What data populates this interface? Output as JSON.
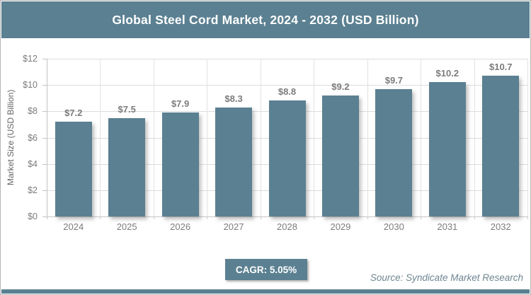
{
  "header": {
    "title": "Global Steel Cord Market, 2024 - 2032 (USD Billion)"
  },
  "chart_data": {
    "type": "bar",
    "title": "Global Steel Cord Market, 2024 - 2032 (USD Billion)",
    "categories": [
      "2024",
      "2025",
      "2026",
      "2027",
      "2028",
      "2029",
      "2030",
      "2031",
      "2032"
    ],
    "values": [
      7.2,
      7.5,
      7.9,
      8.3,
      8.8,
      9.2,
      9.7,
      10.2,
      10.7
    ],
    "value_labels": [
      "$7.2",
      "$7.5",
      "$7.9",
      "$8.3",
      "$8.8",
      "$9.2",
      "$9.7",
      "$10.2",
      "$10.7"
    ],
    "xlabel": "",
    "ylabel": "Market Size (USD Billion)",
    "ylim": [
      0,
      12
    ],
    "yticks": [
      0,
      2,
      4,
      6,
      8,
      10,
      12
    ],
    "ytick_labels": [
      "$0",
      "$2",
      "$4",
      "$6",
      "$8",
      "$10",
      "$12"
    ],
    "grid": true,
    "legend": false
  },
  "footer": {
    "cagr_label": "CAGR: 5.05%",
    "source": "Source: Syndicate Market Research"
  },
  "colors": {
    "accent": "#5b8091",
    "gridline": "#dcdcdc",
    "axis_line": "#c3c3c3",
    "label_gray": "#7c7c7c",
    "source_text": "#6f8691",
    "title_text": "#ffffff",
    "background": "#ffffff"
  }
}
